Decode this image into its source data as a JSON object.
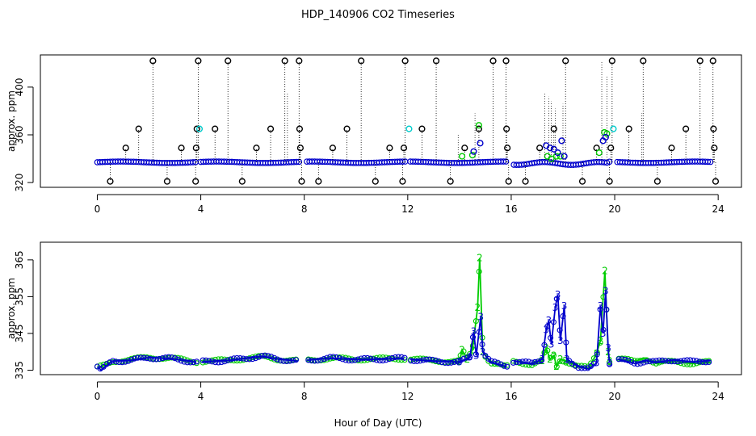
{
  "chart_data": {
    "title": "HDP_140906  CO2 Timeseries",
    "xlabel": "Hour of Day (UTC)",
    "panels": [
      {
        "type": "scatter",
        "ylabel": "approx. ppm",
        "xlim": [
          -2.2,
          24.9
        ],
        "ylim": [
          316,
          427
        ],
        "x_ticks": [
          0,
          4,
          8,
          12,
          16,
          20,
          24
        ],
        "y_ticks": [
          320,
          360,
          400
        ],
        "series": [
          {
            "name": "1",
            "color": "#000000",
            "marker": "o",
            "description_values": "black circles with dotted drop-lines",
            "points": [
              [
                0.5,
                321
              ],
              [
                1.1,
                349
              ],
              [
                1.6,
                365
              ],
              [
                2.15,
                422
              ],
              [
                2.7,
                321
              ],
              [
                3.25,
                349
              ],
              [
                3.8,
                321
              ],
              [
                3.82,
                349
              ],
              [
                3.85,
                365
              ],
              [
                3.9,
                422
              ],
              [
                4.55,
                365
              ],
              [
                5.05,
                422
              ],
              [
                5.6,
                321
              ],
              [
                6.15,
                349
              ],
              [
                6.7,
                365
              ],
              [
                7.25,
                422
              ],
              [
                7.8,
                422
              ],
              [
                7.82,
                365
              ],
              [
                7.85,
                349
              ],
              [
                7.9,
                321
              ],
              [
                8.55,
                321
              ],
              [
                9.1,
                349
              ],
              [
                9.65,
                365
              ],
              [
                10.2,
                422
              ],
              [
                10.75,
                321
              ],
              [
                11.3,
                349
              ],
              [
                11.8,
                321
              ],
              [
                11.85,
                349
              ],
              [
                11.9,
                422
              ],
              [
                12.55,
                365
              ],
              [
                13.1,
                422
              ],
              [
                13.65,
                321
              ],
              [
                14.2,
                349
              ],
              [
                14.75,
                365
              ],
              [
                15.3,
                422
              ],
              [
                15.8,
                422
              ],
              [
                15.82,
                365
              ],
              [
                15.85,
                349
              ],
              [
                15.9,
                321
              ],
              [
                16.55,
                321
              ],
              [
                17.1,
                349
              ],
              [
                17.65,
                365
              ],
              [
                18.1,
                422
              ],
              [
                18.75,
                321
              ],
              [
                19.3,
                349
              ],
              [
                19.8,
                321
              ],
              [
                19.85,
                349
              ],
              [
                19.9,
                422
              ],
              [
                20.55,
                365
              ],
              [
                21.1,
                422
              ],
              [
                21.65,
                321
              ],
              [
                22.2,
                349
              ],
              [
                22.75,
                365
              ],
              [
                23.3,
                422
              ],
              [
                23.8,
                422
              ],
              [
                23.82,
                365
              ],
              [
                23.85,
                349
              ],
              [
                23.9,
                321
              ]
            ]
          },
          {
            "name": "2",
            "color": "#00cc00",
            "marker": "o",
            "points": [
              [
                14.1,
                342
              ],
              [
                14.5,
                343
              ],
              [
                14.75,
                368
              ],
              [
                17.4,
                342
              ],
              [
                17.55,
                340
              ],
              [
                17.75,
                342
              ],
              [
                17.9,
                342
              ],
              [
                19.4,
                345
              ],
              [
                19.6,
                362
              ],
              [
                19.7,
                361
              ]
            ]
          },
          {
            "name": "3",
            "color": "#0000cc",
            "marker": "o",
            "baseline": 337,
            "points": [
              [
                14.55,
                346
              ],
              [
                14.8,
                353
              ],
              [
                17.35,
                351
              ],
              [
                17.5,
                349
              ],
              [
                17.65,
                348
              ],
              [
                17.8,
                345
              ],
              [
                17.95,
                355
              ],
              [
                18.05,
                342
              ],
              [
                19.55,
                355
              ],
              [
                19.65,
                358
              ]
            ]
          },
          {
            "name": "4",
            "color": "#00cccc",
            "marker": "o",
            "points": [
              [
                3.95,
                365
              ],
              [
                12.05,
                365
              ],
              [
                19.95,
                365
              ]
            ]
          }
        ]
      },
      {
        "type": "line",
        "ylabel": "approx. ppm",
        "xlim": [
          -2.2,
          24.9
        ],
        "ylim": [
          333.8,
          369.8
        ],
        "x_ticks": [
          0,
          4,
          8,
          12,
          16,
          20,
          24
        ],
        "y_ticks": [
          335,
          345,
          355,
          365
        ],
        "series": [
          {
            "name": "2",
            "color": "#00cc00",
            "marker": "2",
            "gaps": [
              [
                3.85,
                4.0
              ],
              [
                7.8,
                8.05
              ],
              [
                11.9,
                12.05
              ],
              [
                15.85,
                16.05
              ],
              [
                19.85,
                20.05
              ]
            ],
            "segments": [
              [
                0.0,
                335.6
              ],
              [
                0.2,
                336.2
              ],
              [
                0.6,
                337.5
              ],
              [
                1.2,
                337.8
              ],
              [
                2.0,
                338.5
              ],
              [
                2.8,
                338.3
              ],
              [
                3.8,
                337.3
              ],
              [
                4.05,
                337.4
              ],
              [
                5.0,
                337.7
              ],
              [
                6.4,
                338.6
              ],
              [
                7.0,
                338.0
              ],
              [
                7.75,
                337.6
              ],
              [
                8.1,
                337.8
              ],
              [
                9.0,
                338.2
              ],
              [
                10.0,
                338.0
              ],
              [
                11.0,
                338.1
              ],
              [
                11.85,
                338.2
              ],
              [
                12.1,
                338.0
              ],
              [
                13.0,
                337.6
              ],
              [
                14.0,
                337.4
              ],
              [
                14.1,
                340.5
              ],
              [
                14.3,
                338
              ],
              [
                14.5,
                340.5
              ],
              [
                14.7,
                352
              ],
              [
                14.78,
                365.5
              ],
              [
                14.9,
                340
              ],
              [
                15.2,
                337
              ],
              [
                15.8,
                335.8
              ],
              [
                16.1,
                337.6
              ],
              [
                16.8,
                336.5
              ],
              [
                17.2,
                337.5
              ],
              [
                17.35,
                341
              ],
              [
                17.5,
                338
              ],
              [
                17.65,
                339
              ],
              [
                17.75,
                336
              ],
              [
                17.9,
                338
              ],
              [
                18.1,
                337.5
              ],
              [
                18.6,
                336
              ],
              [
                19.0,
                335.6
              ],
              [
                19.3,
                339.5
              ],
              [
                19.45,
                343
              ],
              [
                19.62,
                362
              ],
              [
                19.75,
                340
              ],
              [
                19.8,
                337.5
              ],
              [
                20.1,
                338
              ],
              [
                20.8,
                337.5
              ],
              [
                21.2,
                338.3
              ],
              [
                21.6,
                336.8
              ],
              [
                22.3,
                337.4
              ],
              [
                23.0,
                336.8
              ],
              [
                23.7,
                337.2
              ]
            ]
          },
          {
            "name": "3",
            "color": "#0000cc",
            "marker": "3",
            "gaps": [
              [
                3.85,
                4.0
              ],
              [
                7.8,
                8.05
              ],
              [
                11.9,
                12.05
              ],
              [
                15.85,
                16.05
              ],
              [
                19.85,
                20.05
              ]
            ],
            "segments": [
              [
                0.0,
                336.0
              ],
              [
                0.15,
                335.0
              ],
              [
                0.4,
                336.5
              ],
              [
                0.6,
                337.5
              ],
              [
                1.2,
                337.6
              ],
              [
                2.0,
                338.4
              ],
              [
                2.8,
                338.2
              ],
              [
                3.8,
                337.2
              ],
              [
                4.05,
                337.3
              ],
              [
                5.0,
                337.6
              ],
              [
                6.4,
                338.8
              ],
              [
                7.0,
                338.0
              ],
              [
                7.75,
                337.5
              ],
              [
                8.1,
                337.7
              ],
              [
                9.0,
                338.3
              ],
              [
                10.0,
                337.9
              ],
              [
                11.0,
                338.0
              ],
              [
                11.85,
                338.3
              ],
              [
                12.1,
                337.9
              ],
              [
                13.0,
                337.5
              ],
              [
                14.0,
                337.2
              ],
              [
                14.4,
                338.5
              ],
              [
                14.55,
                345.5
              ],
              [
                14.65,
                339
              ],
              [
                14.82,
                349.5
              ],
              [
                14.9,
                340
              ],
              [
                15.2,
                337.3
              ],
              [
                15.8,
                336.0
              ],
              [
                16.1,
                337.5
              ],
              [
                16.8,
                336.8
              ],
              [
                17.2,
                338
              ],
              [
                17.35,
                346
              ],
              [
                17.45,
                348.5
              ],
              [
                17.55,
                342
              ],
              [
                17.7,
                352
              ],
              [
                17.8,
                355.5
              ],
              [
                17.9,
                343
              ],
              [
                18.05,
                352.5
              ],
              [
                18.15,
                338
              ],
              [
                18.6,
                336
              ],
              [
                19.0,
                335.3
              ],
              [
                19.3,
                337
              ],
              [
                19.45,
                352.5
              ],
              [
                19.55,
                345
              ],
              [
                19.65,
                356.5
              ],
              [
                19.75,
                341
              ],
              [
                19.8,
                337
              ],
              [
                20.1,
                338
              ],
              [
                20.8,
                336.8
              ],
              [
                21.2,
                337.6
              ],
              [
                21.6,
                337.2
              ],
              [
                22.3,
                337.8
              ],
              [
                23.0,
                337.3
              ],
              [
                23.7,
                337.6
              ]
            ]
          }
        ]
      }
    ]
  }
}
